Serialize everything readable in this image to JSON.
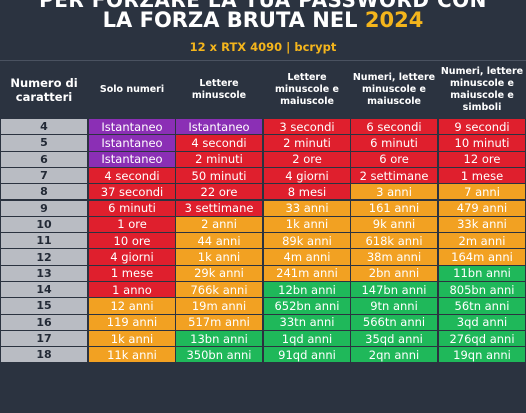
{
  "title_top": "PER FORZARE LA TUA PASSWORD CON",
  "title_main": "LA FORZA BRUTA NEL",
  "title_year": "2024",
  "subtitle": "12 x RTX 4090 | bcrypt",
  "colors": {
    "purple": "#8b2fb5",
    "red": "#df1f2d",
    "orange": "#f2a122",
    "green": "#1fb85a",
    "year": "#f4b51c"
  },
  "headers": [
    "Numero di\ncaratteri",
    "Solo numeri",
    "Lettere\nminuscole",
    "Lettere\nminuscole e\nmaiuscole",
    "Numeri, lettere\nminuscole e\nmaiuscole",
    "Numeri, lettere\nminuscole e\nmaiuscole e\nsimboli"
  ],
  "rows": [
    {
      "n": "4",
      "cells": [
        [
          "Istantaneo",
          "purple"
        ],
        [
          "Istantaneo",
          "purple"
        ],
        [
          "3 secondi",
          "red"
        ],
        [
          "6 secondi",
          "red"
        ],
        [
          "9 secondi",
          "red"
        ]
      ]
    },
    {
      "n": "5",
      "cells": [
        [
          "Istantaneo",
          "purple"
        ],
        [
          "4 secondi",
          "red"
        ],
        [
          "2 minuti",
          "red"
        ],
        [
          "6 minuti",
          "red"
        ],
        [
          "10 minuti",
          "red"
        ]
      ]
    },
    {
      "n": "6",
      "cells": [
        [
          "Istantaneo",
          "purple"
        ],
        [
          "2 minuti",
          "red"
        ],
        [
          "2 ore",
          "red"
        ],
        [
          "6 ore",
          "red"
        ],
        [
          "12 ore",
          "red"
        ]
      ]
    },
    {
      "n": "7",
      "cells": [
        [
          "4 secondi",
          "red"
        ],
        [
          "50 minuti",
          "red"
        ],
        [
          "4 giorni",
          "red"
        ],
        [
          "2 settimane",
          "red"
        ],
        [
          "1 mese",
          "red"
        ]
      ]
    },
    {
      "n": "8",
      "cells": [
        [
          "37 secondi",
          "red"
        ],
        [
          "22 ore",
          "red"
        ],
        [
          "8 mesi",
          "red"
        ],
        [
          "3 anni",
          "orange"
        ],
        [
          "7 anni",
          "orange"
        ]
      ]
    },
    {
      "n": "9",
      "cells": [
        [
          "6 minuti",
          "red"
        ],
        [
          "3 settimane",
          "red"
        ],
        [
          "33 anni",
          "orange"
        ],
        [
          "161 anni",
          "orange"
        ],
        [
          "479 anni",
          "orange"
        ]
      ]
    },
    {
      "n": "10",
      "cells": [
        [
          "1 ore",
          "red"
        ],
        [
          "2 anni",
          "orange"
        ],
        [
          "1k anni",
          "orange"
        ],
        [
          "9k anni",
          "orange"
        ],
        [
          "33k anni",
          "orange"
        ]
      ]
    },
    {
      "n": "11",
      "cells": [
        [
          "10 ore",
          "red"
        ],
        [
          "44 anni",
          "orange"
        ],
        [
          "89k anni",
          "orange"
        ],
        [
          "618k anni",
          "orange"
        ],
        [
          "2m anni",
          "orange"
        ]
      ]
    },
    {
      "n": "12",
      "cells": [
        [
          "4 giorni",
          "red"
        ],
        [
          "1k anni",
          "orange"
        ],
        [
          "4m anni",
          "orange"
        ],
        [
          "38m anni",
          "orange"
        ],
        [
          "164m anni",
          "orange"
        ]
      ]
    },
    {
      "n": "13",
      "cells": [
        [
          "1 mese",
          "red"
        ],
        [
          "29k anni",
          "orange"
        ],
        [
          "241m anni",
          "orange"
        ],
        [
          "2bn anni",
          "orange"
        ],
        [
          "11bn anni",
          "green"
        ]
      ]
    },
    {
      "n": "14",
      "cells": [
        [
          "1 anno",
          "red"
        ],
        [
          "766k anni",
          "orange"
        ],
        [
          "12bn anni",
          "green"
        ],
        [
          "147bn anni",
          "green"
        ],
        [
          "805bn anni",
          "green"
        ]
      ]
    },
    {
      "n": "15",
      "cells": [
        [
          "12 anni",
          "orange"
        ],
        [
          "19m anni",
          "orange"
        ],
        [
          "652bn anni",
          "green"
        ],
        [
          "9tn anni",
          "green"
        ],
        [
          "56tn anni",
          "green"
        ]
      ]
    },
    {
      "n": "16",
      "cells": [
        [
          "119 anni",
          "orange"
        ],
        [
          "517m anni",
          "orange"
        ],
        [
          "33tn anni",
          "green"
        ],
        [
          "566tn anni",
          "green"
        ],
        [
          "3qd anni",
          "green"
        ]
      ]
    },
    {
      "n": "17",
      "cells": [
        [
          "1k anni",
          "orange"
        ],
        [
          "13bn anni",
          "green"
        ],
        [
          "1qd anni",
          "green"
        ],
        [
          "35qd anni",
          "green"
        ],
        [
          "276qd anni",
          "green"
        ]
      ]
    },
    {
      "n": "18",
      "cells": [
        [
          "11k anni",
          "orange"
        ],
        [
          "350bn anni",
          "green"
        ],
        [
          "91qd anni",
          "green"
        ],
        [
          "2qn anni",
          "green"
        ],
        [
          "19qn anni",
          "green"
        ]
      ]
    }
  ]
}
